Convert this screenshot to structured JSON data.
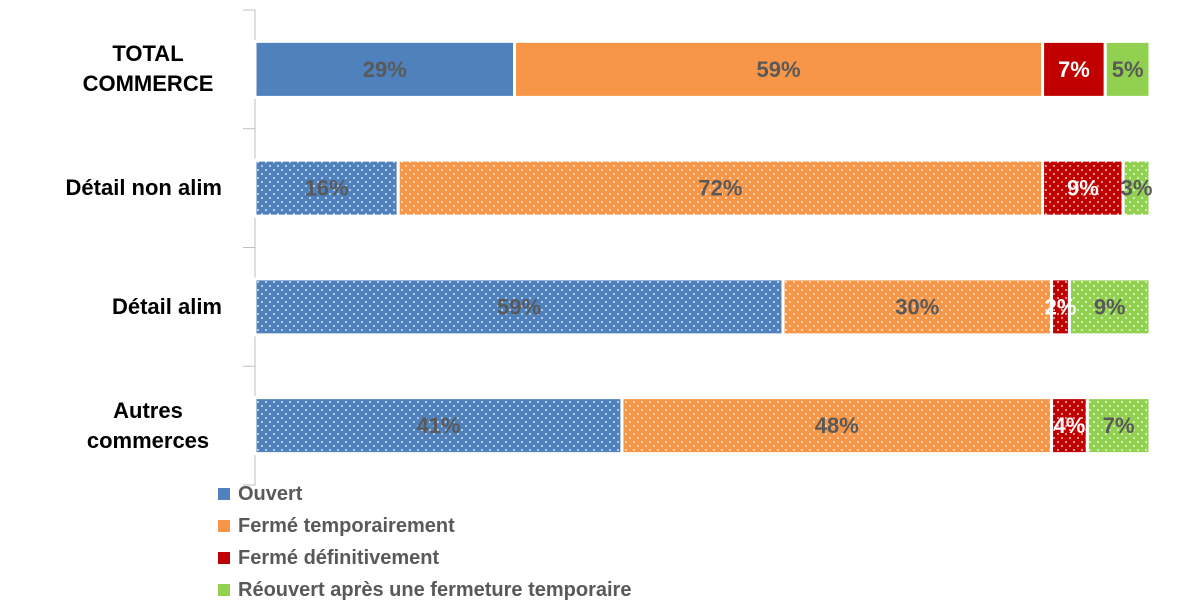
{
  "chart_data": {
    "type": "stacked_bar_horizontal",
    "categories": [
      "TOTAL COMMERCE",
      "Détail non alim",
      "Détail alim",
      "Autres commerces"
    ],
    "series": [
      {
        "name": "Ouvert",
        "color": "#4f81bd",
        "values": [
          29,
          16,
          59,
          41
        ],
        "value_labels": [
          "29%",
          "16%",
          "59%",
          "41%"
        ]
      },
      {
        "name": "Fermé temporairement",
        "color": "#f79646",
        "values": [
          59,
          72,
          30,
          48
        ],
        "value_labels": [
          "59%",
          "72%",
          "30%",
          "48%"
        ]
      },
      {
        "name": "Fermé définitivement",
        "color": "#c00000",
        "values": [
          7,
          9,
          2,
          4
        ],
        "value_labels": [
          "7%",
          "9%",
          "2%",
          "4%"
        ]
      },
      {
        "name": "Réouvert après une fermeture temporaire",
        "color": "#92d050",
        "values": [
          5,
          3,
          9,
          7
        ],
        "value_labels": [
          "5%",
          "3%",
          "9%",
          "7%"
        ]
      }
    ],
    "xlim": [
      0,
      100
    ]
  }
}
